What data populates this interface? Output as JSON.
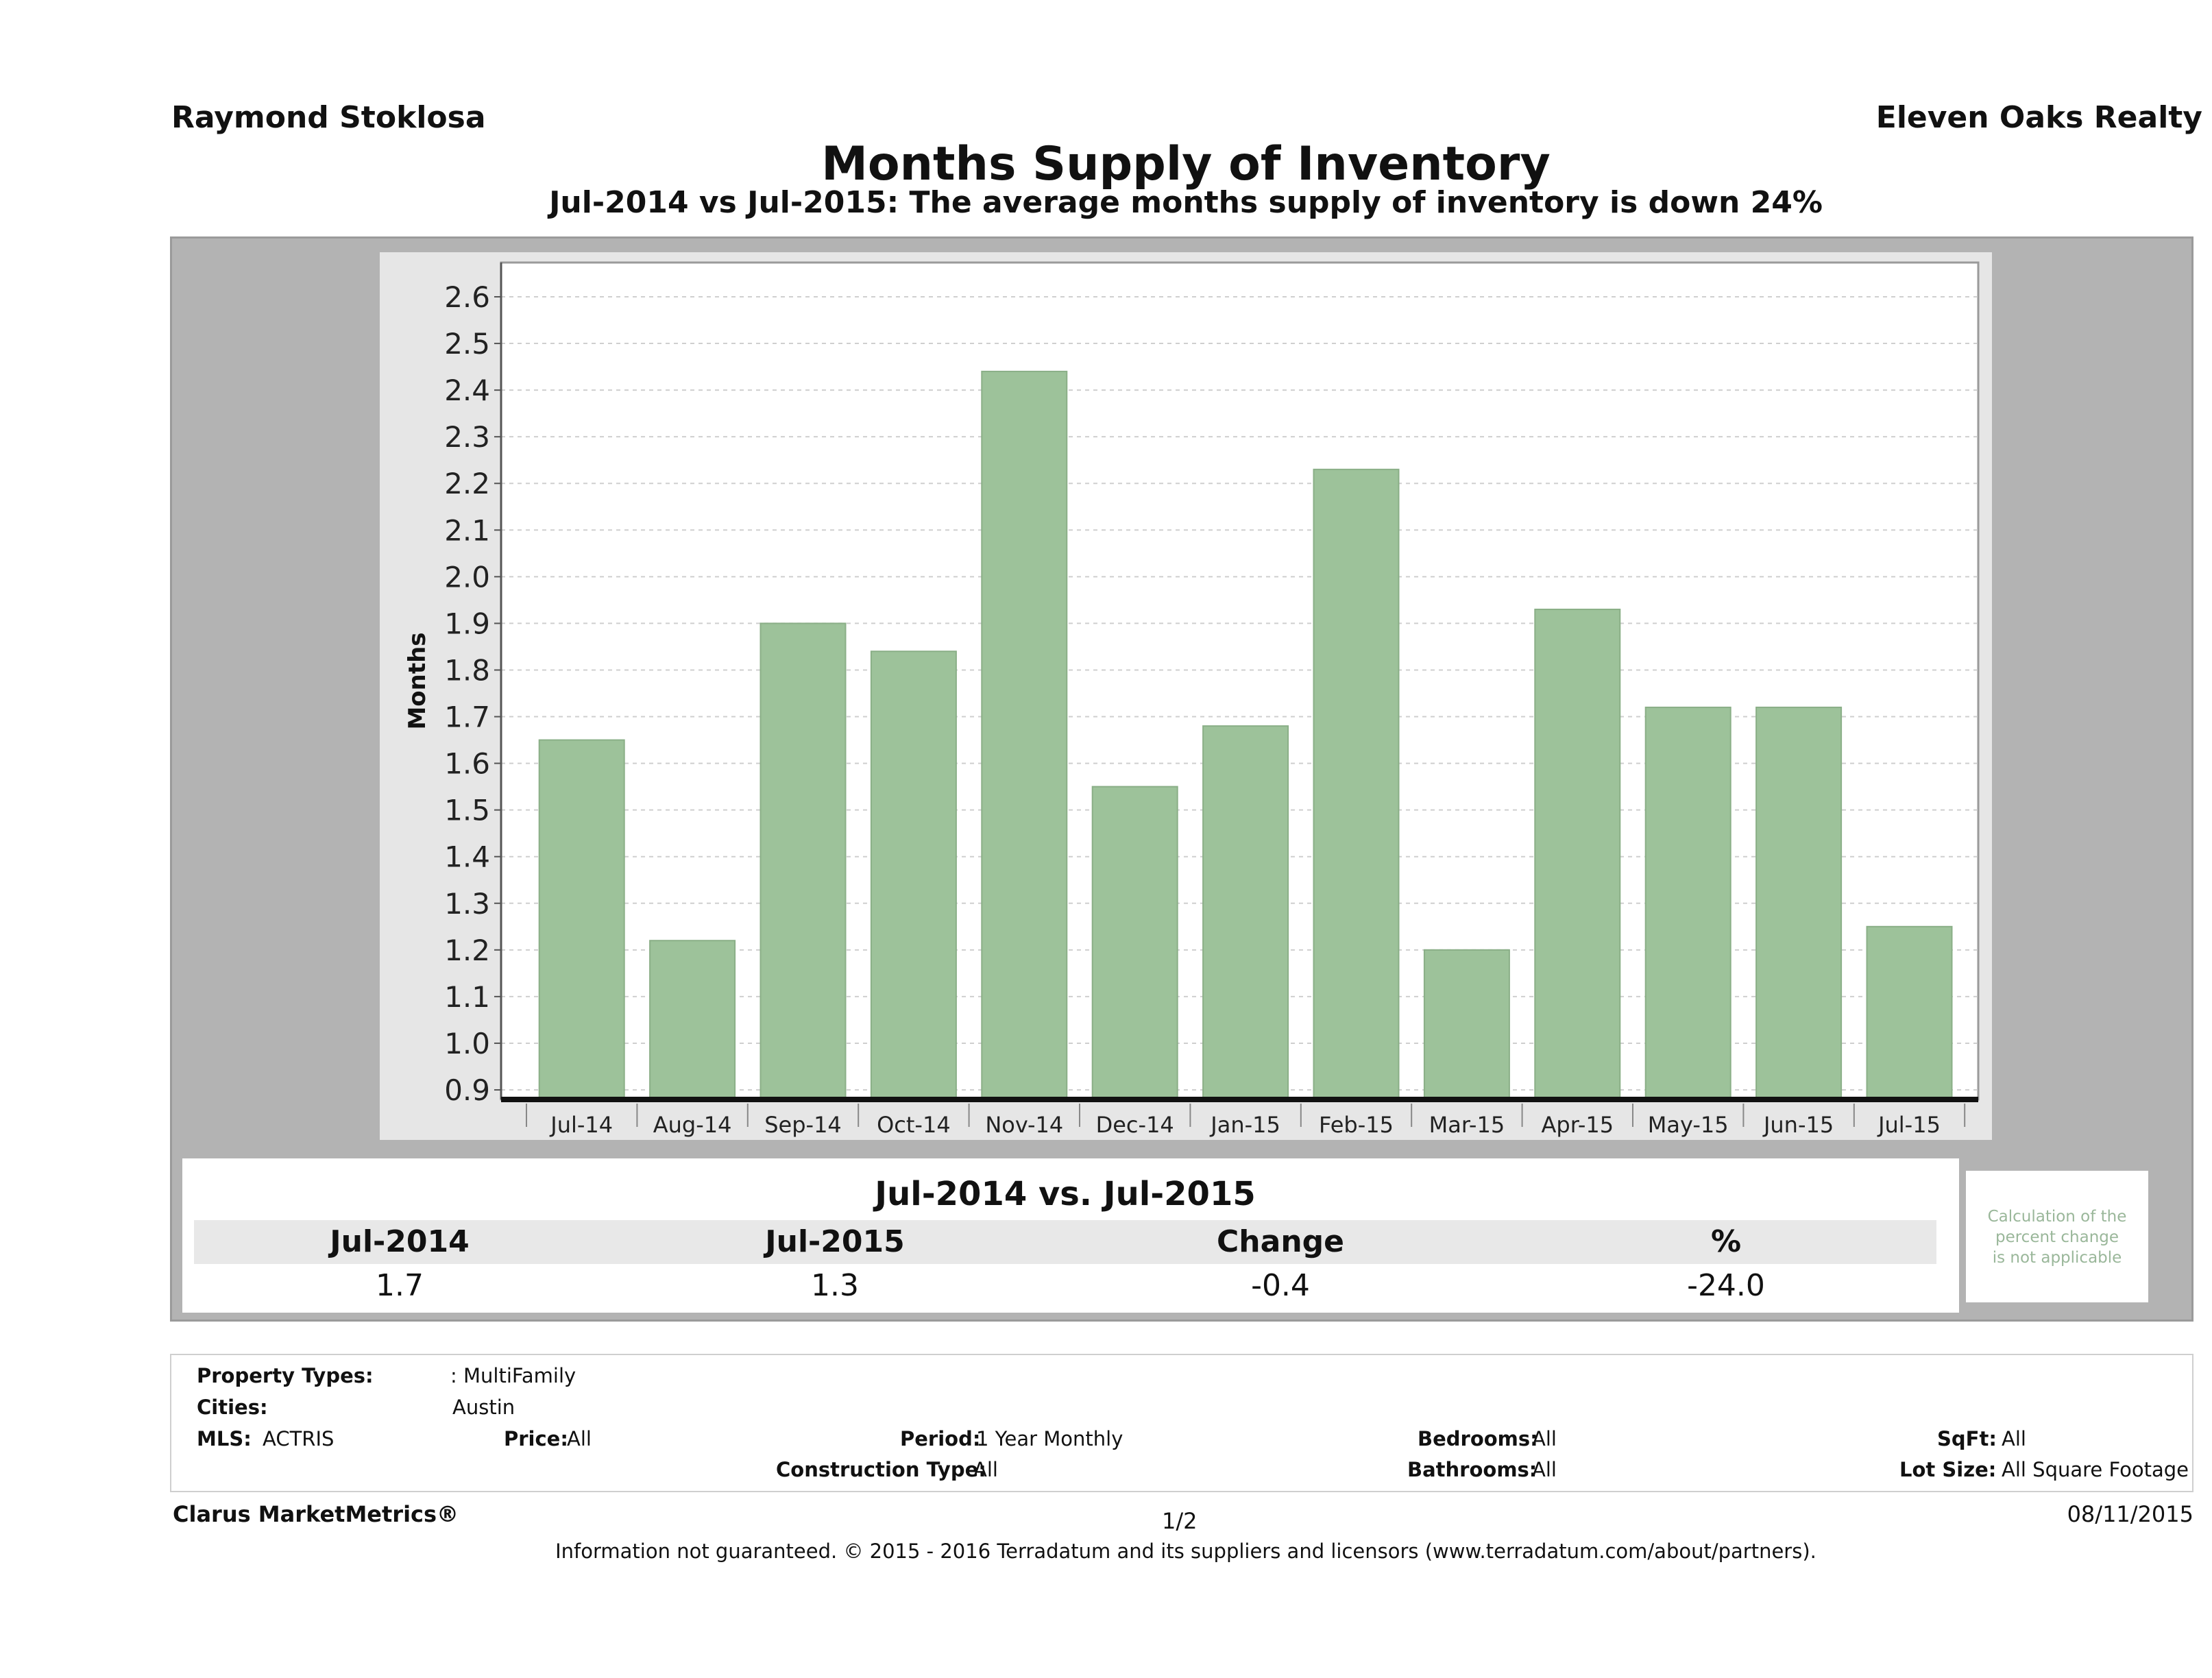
{
  "header": {
    "agent": "Raymond Stoklosa",
    "company": "Eleven Oaks Realty",
    "title": "Months Supply of Inventory",
    "subtitle": "Jul-2014 vs Jul-2015: The average months supply of inventory is down 24%"
  },
  "colors": {
    "bar": "#9dc29a",
    "bar_stroke": "#8aaf87",
    "panel": "#b3b3b3",
    "chart_bg": "#e6e6e6",
    "axis": "#111111"
  },
  "chart_data": {
    "type": "bar",
    "ylabel": "Months",
    "xlabel": "",
    "ylim": [
      0.9,
      2.6
    ],
    "yticks": [
      "0.9",
      "1.0",
      "1.1",
      "1.2",
      "1.3",
      "1.4",
      "1.5",
      "1.6",
      "1.7",
      "1.8",
      "1.9",
      "2.0",
      "2.1",
      "2.2",
      "2.3",
      "2.4",
      "2.5",
      "2.6"
    ],
    "grid": true,
    "categories": [
      "Jul-14",
      "Aug-14",
      "Sep-14",
      "Oct-14",
      "Nov-14",
      "Dec-14",
      "Jan-15",
      "Feb-15",
      "Mar-15",
      "Apr-15",
      "May-15",
      "Jun-15",
      "Jul-15"
    ],
    "values": [
      1.65,
      1.22,
      1.9,
      1.84,
      2.44,
      1.55,
      1.68,
      2.23,
      1.2,
      1.93,
      1.72,
      1.72,
      1.25
    ]
  },
  "comparison": {
    "title": "Jul-2014 vs. Jul-2015",
    "headers": [
      "Jul-2014",
      "Jul-2015",
      "Change",
      "%"
    ],
    "values": [
      "1.7",
      "1.3",
      "-0.4",
      "-24.0"
    ],
    "note_line1": "Calculation of the",
    "note_line2": "percent change",
    "note_line3": "is not applicable"
  },
  "filters": {
    "property_types_label": "Property Types:",
    "property_types_value": ": MultiFamily",
    "cities_label": "Cities:",
    "cities_value": "Austin",
    "mls_label": "MLS:",
    "mls_value": "ACTRIS",
    "price_label": "Price:",
    "price_value": "All",
    "period_label": "Period:",
    "period_value": "1 Year Monthly",
    "bedrooms_label": "Bedrooms:",
    "bedrooms_value": "All",
    "sqft_label": "SqFt:",
    "sqft_value": "All",
    "construction_label": "Construction Type:",
    "construction_value": "All",
    "bathrooms_label": "Bathrooms:",
    "bathrooms_value": "All",
    "lotsize_label": "Lot Size:",
    "lotsize_value": "All Square Footage"
  },
  "footer": {
    "brand": "Clarus MarketMetrics®",
    "page": "1/2",
    "date": "08/11/2015",
    "disclaimer": "Information not guaranteed. © 2015 - 2016 Terradatum and its suppliers and licensors (www.terradatum.com/about/partners)."
  }
}
